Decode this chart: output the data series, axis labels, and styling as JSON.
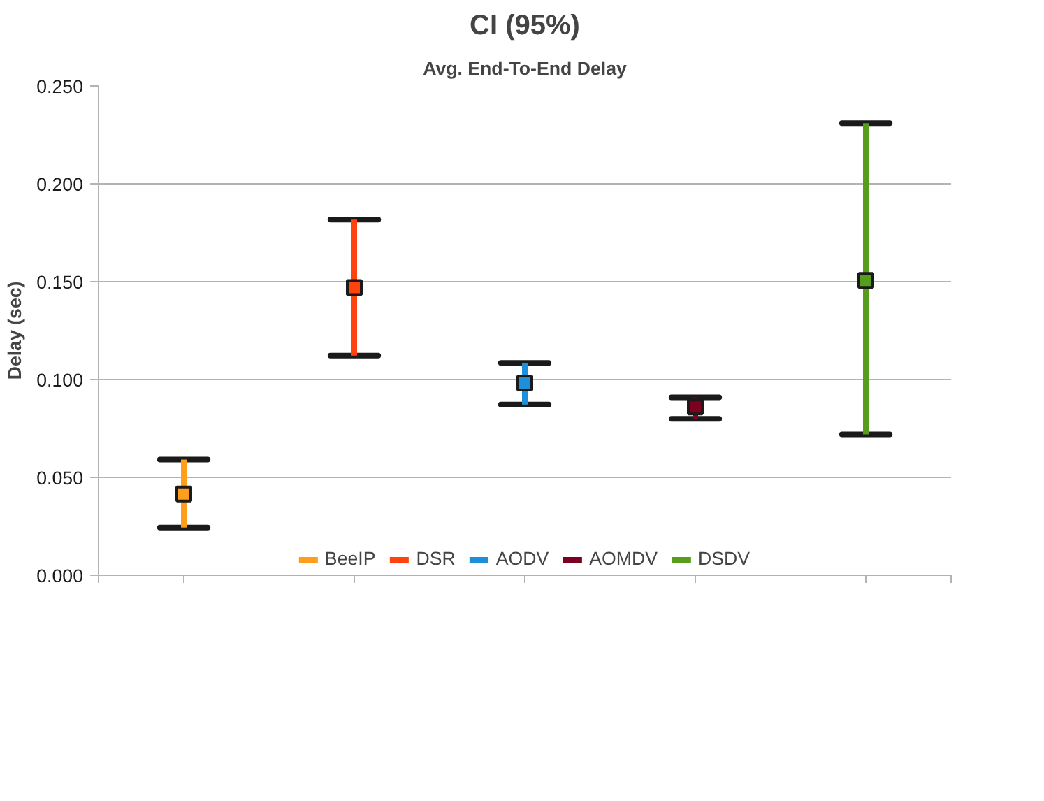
{
  "chart_data": {
    "type": "scatter",
    "title": "CI (95%)",
    "subtitle": "Avg. End-To-End Delay",
    "ylabel": "Delay (sec)",
    "categories": [
      null,
      null,
      null,
      null,
      null
    ],
    "series": [
      {
        "name": "BeeIP",
        "color": "#ff9e1a",
        "values": [
          0.0415,
          null,
          null,
          null,
          null
        ],
        "errors": [
          [
            0.0244,
            0.0591
          ],
          null,
          null,
          null,
          null
        ]
      },
      {
        "name": "DSR",
        "color": "#ff420e",
        "values": [
          null,
          0.147,
          null,
          null,
          null
        ],
        "errors": [
          null,
          [
            0.1122,
            0.1817
          ],
          null,
          null,
          null
        ]
      },
      {
        "name": "AODV",
        "color": "#1e90d8",
        "values": [
          null,
          null,
          0.0982,
          null,
          null
        ],
        "errors": [
          null,
          null,
          [
            0.0872,
            0.1085
          ],
          null,
          null
        ]
      },
      {
        "name": "AOMDV",
        "color": "#7e0021",
        "values": [
          null,
          null,
          null,
          0.086,
          null
        ],
        "errors": [
          null,
          null,
          null,
          [
            0.0799,
            0.0909
          ],
          null
        ]
      },
      {
        "name": "DSDV",
        "color": "#579d1c",
        "values": [
          null,
          null,
          null,
          null,
          0.1506
        ],
        "errors": [
          null,
          null,
          null,
          null,
          [
            0.072,
            0.231
          ]
        ]
      }
    ],
    "ylim": [
      0,
      0.25
    ],
    "yticks": [
      {
        "value": 0,
        "label": "0.000"
      },
      {
        "value": 0.05,
        "label": "0.050"
      },
      {
        "value": 0.1,
        "label": "0.100"
      },
      {
        "value": 0.15,
        "label": "0.150"
      },
      {
        "value": 0.2,
        "label": "0.200"
      },
      {
        "value": 0.25,
        "label": "0.250"
      }
    ],
    "grid": "y",
    "legend": "bottom",
    "tick_labels": "y"
  }
}
